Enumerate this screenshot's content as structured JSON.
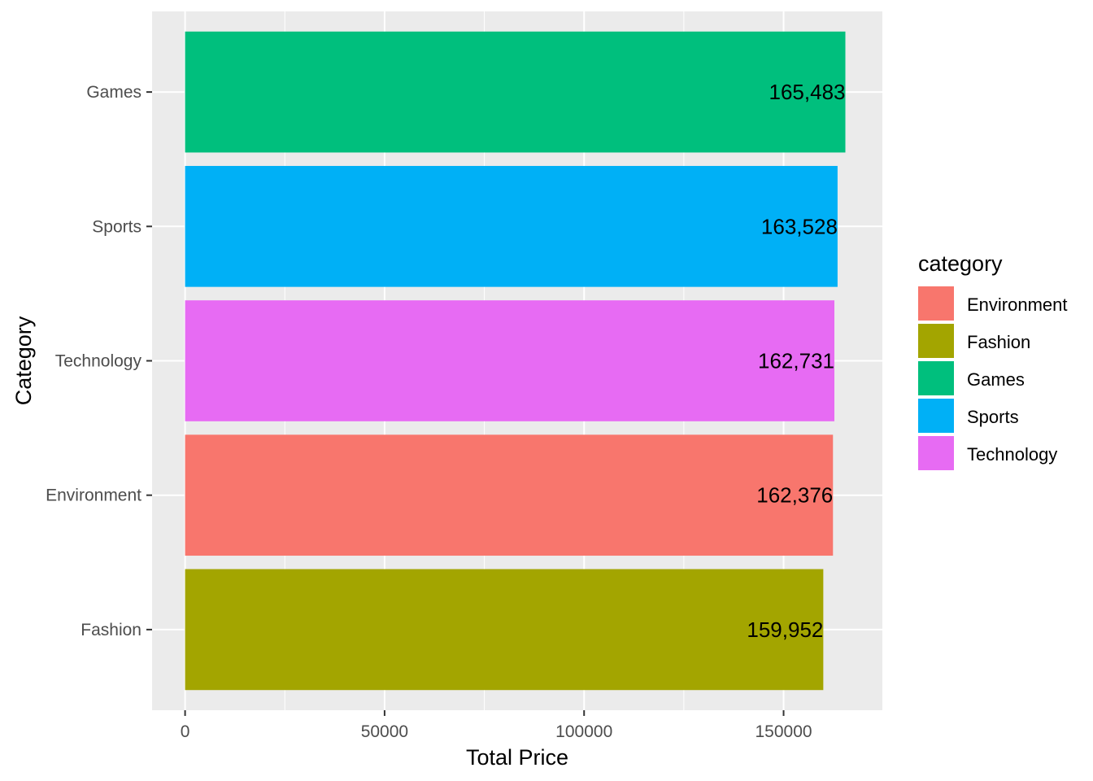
{
  "chart_data": {
    "type": "bar",
    "orientation": "horizontal",
    "categories": [
      "Fashion",
      "Environment",
      "Technology",
      "Sports",
      "Games"
    ],
    "values": [
      159952,
      162376,
      162731,
      163528,
      165483
    ],
    "value_labels": [
      "159,952",
      "162,376",
      "162,731",
      "163,528",
      "165,483"
    ],
    "colors": {
      "Environment": "#F8766D",
      "Fashion": "#A3A500",
      "Games": "#00BF7D",
      "Sports": "#00B0F6",
      "Technology": "#E76BF3"
    },
    "xlabel": "Total Price",
    "ylabel": "Category",
    "xlim": [
      -8274,
      174757
    ],
    "x_ticks": [
      0,
      50000,
      100000,
      150000
    ],
    "x_tick_labels": [
      "0",
      "50000",
      "100000",
      "150000"
    ],
    "grid": true,
    "panel_background": "#EBEBEB",
    "legend": {
      "title": "category",
      "position": "right",
      "entries": [
        "Environment",
        "Fashion",
        "Games",
        "Sports",
        "Technology"
      ]
    }
  }
}
